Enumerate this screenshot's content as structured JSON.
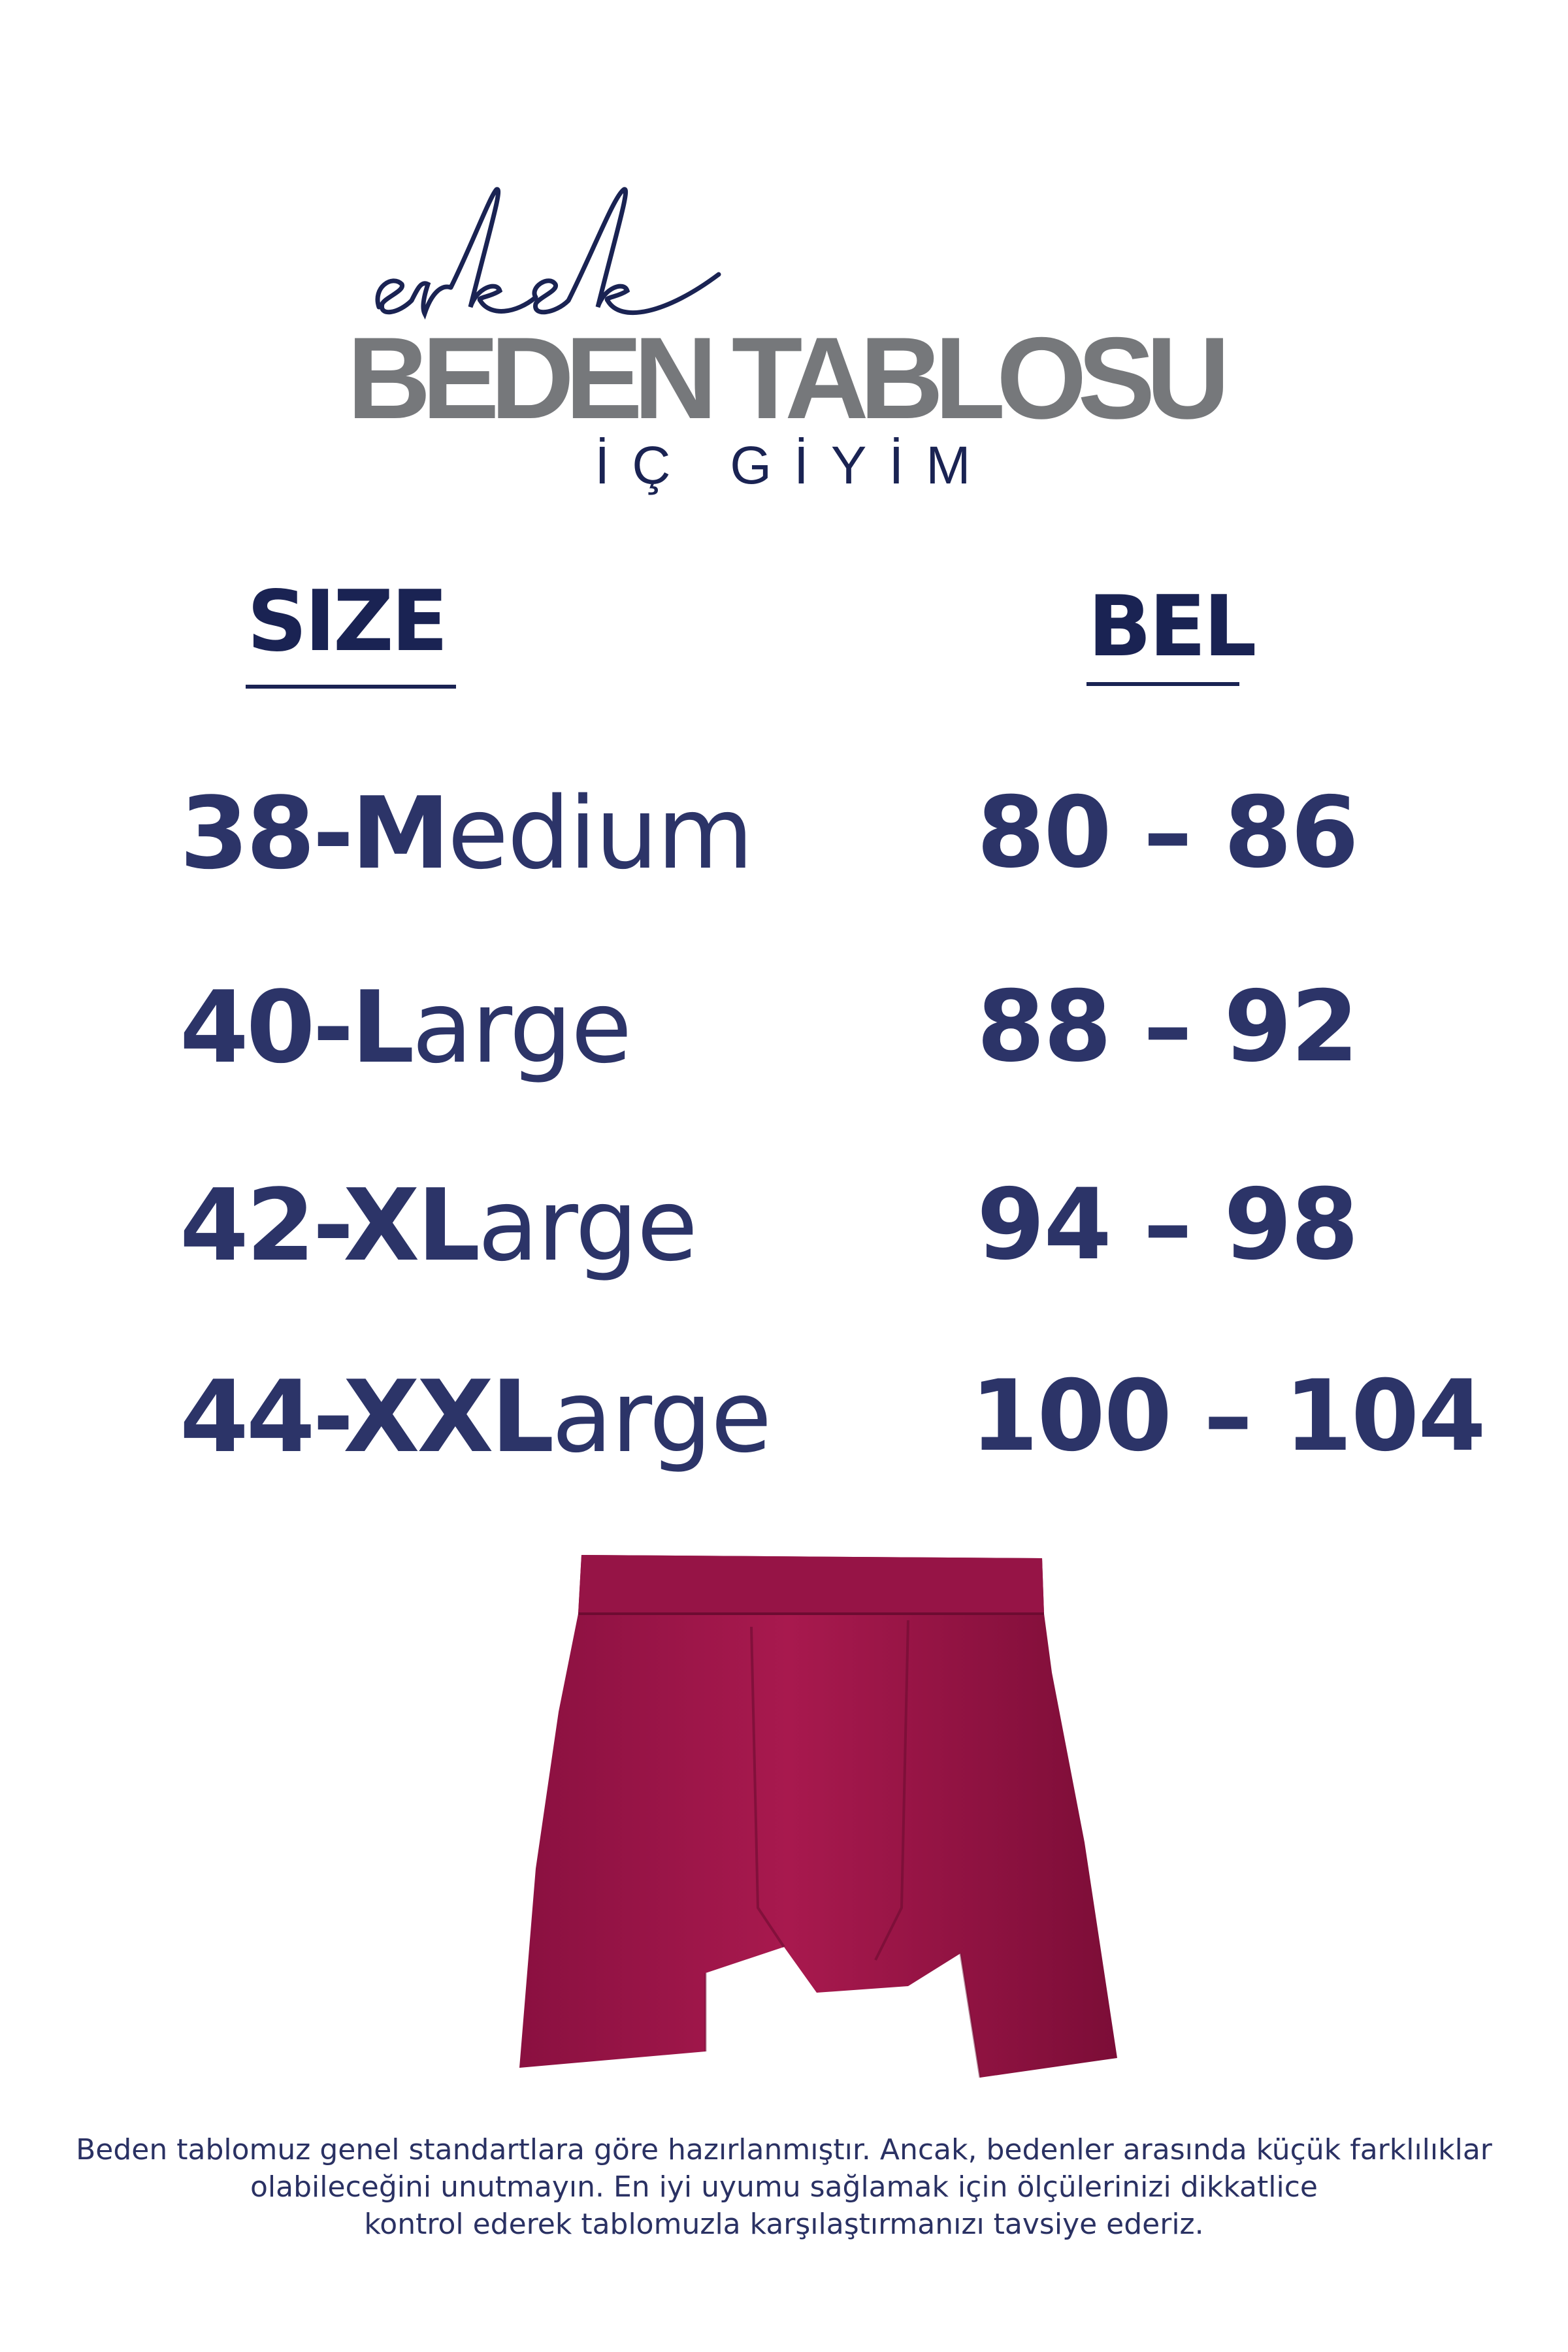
{
  "header": {
    "script_word": "erkek",
    "title": "BEDEN TABLOSU",
    "subtitle": "İÇ GİYİM"
  },
  "table": {
    "col_size": "SIZE",
    "col_waist": "BEL",
    "rows": [
      {
        "num": "38-",
        "cap": "M",
        "rest": "edium",
        "waist": "80 – 86"
      },
      {
        "num": "40-",
        "cap": "L",
        "rest": "arge",
        "waist": "88 – 92"
      },
      {
        "num": "42-",
        "cap": "XL",
        "rest": "arge",
        "waist": "94 – 98"
      },
      {
        "num": "44-",
        "cap": "XXL",
        "rest": "arge",
        "waist": "100 – 104"
      }
    ]
  },
  "product_image": {
    "icon": "boxer-briefs-image",
    "color": "#a0174a"
  },
  "footer": {
    "lines": [
      "Beden tablomuz genel standartlara göre hazırlanmıştır. Ancak, bedenler arasında küçük farklılıklar",
      "olabileceğini unutmayın. En iyi uyumu sağlamak için ölçülerinizi dikkatlice",
      "kontrol ederek tablomuzla karşılaştırmanızı tavsiye ederiz."
    ]
  },
  "colors": {
    "navy": "#2c3468",
    "gray": "#76787b",
    "burgundy": "#a0174a"
  }
}
